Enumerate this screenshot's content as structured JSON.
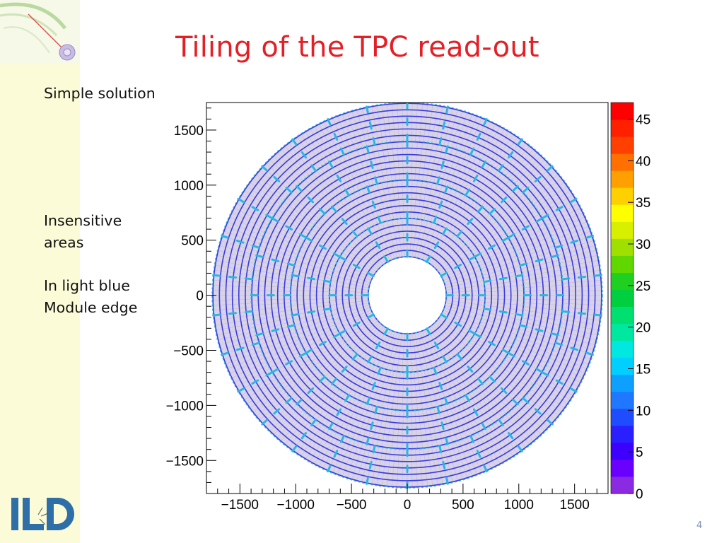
{
  "slide": {
    "title": "Tiling of the TPC read-out",
    "notes": [
      "Simple solution",
      "Insensitive",
      "areas",
      "In light blue",
      "Module edge"
    ],
    "page_number": "4"
  },
  "logo": {
    "name": "ild-logo-icon",
    "color": "#2e6fa8"
  },
  "chart_data": {
    "type": "heatmap",
    "description_type": "tpc-readout-tiling",
    "xlim": [
      -1800,
      1800
    ],
    "ylim": [
      -1800,
      1750
    ],
    "x_ticks": [
      -1500,
      -1000,
      -500,
      0,
      500,
      1000,
      1500
    ],
    "y_ticks": [
      1500,
      1000,
      500,
      0,
      -500,
      -1000,
      -1500
    ],
    "x_tick_labels": [
      "−1500",
      "−1000",
      "−500",
      "0",
      "500",
      "1000",
      "1500"
    ],
    "y_tick_labels": [
      "1500",
      "1000",
      "500",
      "0",
      "−500",
      "−1000",
      "−1500"
    ],
    "inner_radius": 350,
    "outer_radius": 1750,
    "module_rings": [
      {
        "r_inner": 350,
        "r_outer": 700,
        "modules": 12
      },
      {
        "r_inner": 700,
        "r_outer": 1050,
        "modules": 18
      },
      {
        "r_inner": 1050,
        "r_outer": 1400,
        "modules": 24
      },
      {
        "r_inner": 1400,
        "r_outer": 1750,
        "modules": 30
      }
    ],
    "pad_row_pitch": 58,
    "colorbar": {
      "min": 0,
      "max": 47,
      "ticks": [
        0,
        5,
        10,
        15,
        20,
        25,
        30,
        35,
        40,
        45
      ],
      "tick_labels": [
        "0",
        "5",
        "10",
        "15",
        "20",
        "25",
        "30",
        "35",
        "40",
        "45"
      ]
    },
    "colors": {
      "pad_rows": "#3a3ae0",
      "module_edges": "#29b6e6",
      "pads_fill": "#d8d3e8",
      "frame": "#000000"
    }
  }
}
